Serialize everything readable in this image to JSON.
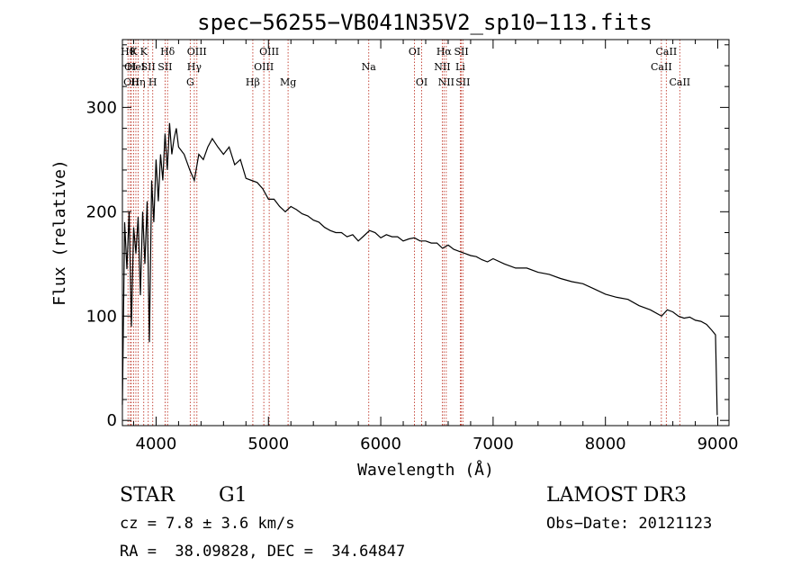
{
  "chart_data": {
    "type": "line",
    "title": "spec−56255−VB041N35V2_sp10−113.fits",
    "xlabel": "Wavelength (Å)",
    "ylabel": "Flux (relative)",
    "xlim": [
      3700,
      9100
    ],
    "ylim": [
      -5,
      365
    ],
    "xticks": [
      4000,
      5000,
      6000,
      7000,
      8000,
      9000
    ],
    "yticks": [
      0,
      100,
      200,
      300
    ],
    "series": [
      {
        "name": "flux",
        "x": [
          3700,
          3720,
          3740,
          3760,
          3780,
          3800,
          3820,
          3840,
          3860,
          3880,
          3900,
          3920,
          3940,
          3960,
          3980,
          4000,
          4020,
          4040,
          4060,
          4080,
          4100,
          4120,
          4140,
          4160,
          4180,
          4200,
          4250,
          4300,
          4340,
          4380,
          4420,
          4460,
          4500,
          4550,
          4600,
          4650,
          4700,
          4750,
          4800,
          4850,
          4900,
          4950,
          5000,
          5050,
          5100,
          5150,
          5200,
          5250,
          5300,
          5350,
          5400,
          5450,
          5500,
          5550,
          5600,
          5650,
          5700,
          5750,
          5800,
          5850,
          5900,
          5950,
          6000,
          6050,
          6100,
          6150,
          6200,
          6250,
          6300,
          6350,
          6400,
          6450,
          6500,
          6550,
          6600,
          6650,
          6700,
          6750,
          6800,
          6850,
          6900,
          6950,
          7000,
          7100,
          7200,
          7300,
          7400,
          7500,
          7600,
          7700,
          7800,
          7900,
          8000,
          8100,
          8200,
          8300,
          8400,
          8500,
          8550,
          8600,
          8650,
          8700,
          8750,
          8800,
          8850,
          8900,
          8950,
          8980,
          8995
        ],
        "values": [
          15,
          190,
          145,
          200,
          90,
          185,
          160,
          195,
          120,
          200,
          150,
          210,
          75,
          230,
          190,
          250,
          210,
          255,
          230,
          275,
          240,
          285,
          255,
          270,
          280,
          262,
          255,
          240,
          230,
          255,
          250,
          262,
          270,
          262,
          255,
          262,
          245,
          250,
          232,
          230,
          228,
          222,
          212,
          212,
          205,
          200,
          205,
          202,
          198,
          196,
          192,
          190,
          185,
          182,
          180,
          180,
          176,
          178,
          172,
          177,
          182,
          180,
          175,
          178,
          176,
          176,
          172,
          174,
          175,
          172,
          172,
          170,
          170,
          165,
          168,
          164,
          162,
          160,
          158,
          157,
          154,
          152,
          155,
          150,
          146,
          146,
          142,
          140,
          136,
          133,
          131,
          126,
          121,
          118,
          116,
          110,
          106,
          100,
          106,
          104,
          100,
          98,
          99,
          96,
          95,
          92,
          86,
          82,
          5
        ]
      }
    ],
    "lines": [
      {
        "x": 3750,
        "row": 1,
        "label": "Hθ"
      },
      {
        "x": 3770,
        "row": 2,
        "label": "OI"
      },
      {
        "x": 3780,
        "row": 3,
        "label": "OII"
      },
      {
        "x": 3800,
        "row": 1,
        "label": "K"
      },
      {
        "x": 3820,
        "row": 2,
        "label": "HeI"
      },
      {
        "x": 3840,
        "row": 3,
        "label": "Hη"
      },
      {
        "x": 3890,
        "row": 1,
        "label": "K"
      },
      {
        "x": 3930,
        "row": 2,
        "label": "SII"
      },
      {
        "x": 3970,
        "row": 3,
        "label": "H"
      },
      {
        "x": 4102,
        "row": 1,
        "label": "Hδ"
      },
      {
        "x": 4080,
        "row": 2,
        "label": "SII"
      },
      {
        "x": 4304,
        "row": 3,
        "label": "G"
      },
      {
        "x": 4340,
        "row": 2,
        "label": "Hγ"
      },
      {
        "x": 4363,
        "row": 1,
        "label": "OIII"
      },
      {
        "x": 4861,
        "row": 3,
        "label": "Hβ"
      },
      {
        "x": 4959,
        "row": 2,
        "label": "OIII"
      },
      {
        "x": 5007,
        "row": 1,
        "label": "OIII"
      },
      {
        "x": 5175,
        "row": 3,
        "label": "Mg"
      },
      {
        "x": 5893,
        "row": 2,
        "label": "Na"
      },
      {
        "x": 6300,
        "row": 1,
        "label": "OI"
      },
      {
        "x": 6364,
        "row": 3,
        "label": "OI"
      },
      {
        "x": 6548,
        "row": 2,
        "label": "NII"
      },
      {
        "x": 6563,
        "row": 1,
        "label": "Hα"
      },
      {
        "x": 6583,
        "row": 3,
        "label": "NII"
      },
      {
        "x": 6708,
        "row": 2,
        "label": "Li"
      },
      {
        "x": 6717,
        "row": 1,
        "label": "SII"
      },
      {
        "x": 6731,
        "row": 3,
        "label": "SII"
      },
      {
        "x": 8498,
        "row": 2,
        "label": "CaII"
      },
      {
        "x": 8542,
        "row": 1,
        "label": "CaII"
      },
      {
        "x": 8662,
        "row": 3,
        "label": "CaII"
      }
    ]
  },
  "footer": {
    "object_class": "STAR",
    "subclass": "G1",
    "cz": "cz = 7.8 ± 3.6 km/s",
    "coords": "RA =  38.09828, DEC =  34.64847",
    "survey": "LAMOST DR3",
    "obs_date": "Obs−Date: 20121123"
  }
}
